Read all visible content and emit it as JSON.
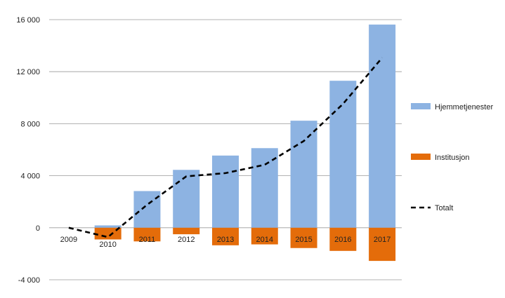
{
  "chart_data": {
    "type": "bar",
    "categories": [
      "2009",
      "2010",
      "2011",
      "2012",
      "2013",
      "2014",
      "2015",
      "2016",
      "2017"
    ],
    "series": [
      {
        "name": "Hjemmetjenester",
        "type": "bar",
        "color": "#8DB3E2",
        "values": [
          0,
          180,
          2820,
          4450,
          5550,
          6120,
          8230,
          11300,
          15620
        ]
      },
      {
        "name": "Institusjon",
        "type": "bar",
        "color": "#E46C0A",
        "values": [
          0,
          -900,
          -1050,
          -500,
          -1350,
          -1280,
          -1560,
          -1780,
          -2550
        ]
      },
      {
        "name": "Totalt",
        "type": "line",
        "style": "dashed",
        "color": "#000000",
        "values": [
          0,
          -720,
          1770,
          3950,
          4200,
          4840,
          6670,
          9520,
          13070
        ]
      }
    ],
    "ylim": [
      -4000,
      16000
    ],
    "yticks": [
      "-4 000",
      "0",
      "4 000",
      "8 000",
      "12 000",
      "16 000"
    ],
    "ytick_values": [
      -4000,
      0,
      4000,
      8000,
      12000,
      16000
    ],
    "grid": true,
    "legend_position": "right",
    "title": "",
    "xlabel": "",
    "ylabel": ""
  }
}
